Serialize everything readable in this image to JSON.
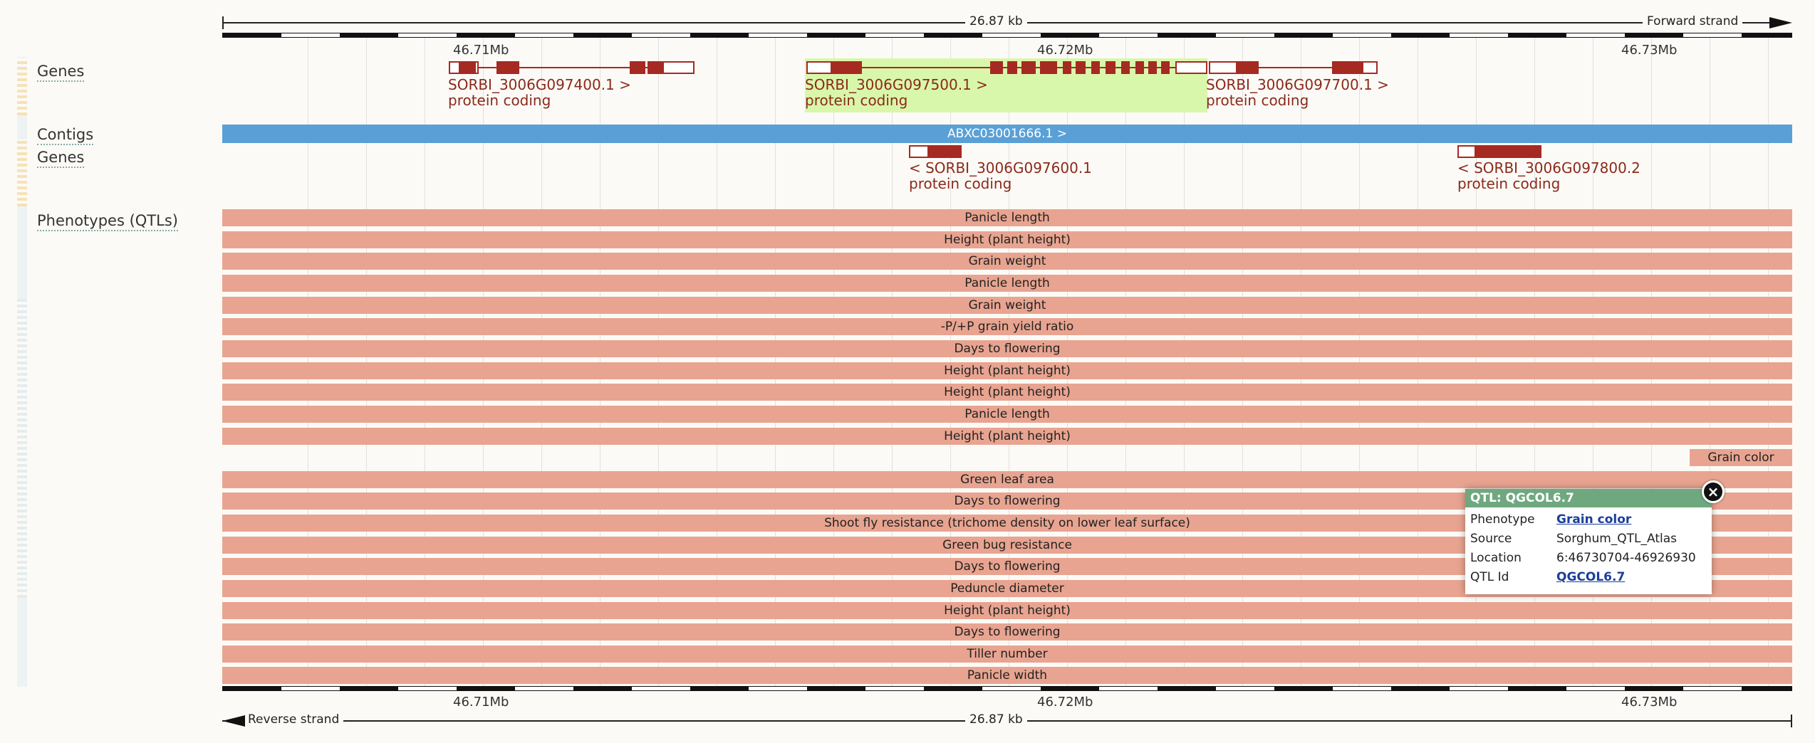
{
  "ruler": {
    "length_label": "26.87 kb",
    "forward_strand": "Forward strand",
    "reverse_strand": "Reverse strand",
    "mb_labels": [
      "46.71Mb",
      "46.72Mb",
      "46.73Mb"
    ]
  },
  "tracks": {
    "genes_top": "Genes",
    "contigs": "Contigs",
    "genes_bottom": "Genes",
    "phenotypes": "Phenotypes (QTLs)"
  },
  "genes_forward": [
    {
      "name": "SORBI_3006G097400.1 >",
      "biotype": "protein coding"
    },
    {
      "name": "SORBI_3006G097500.1 >",
      "biotype": "protein coding"
    },
    {
      "name": "SORBI_3006G097700.1 >",
      "biotype": "protein coding"
    }
  ],
  "contig_label": "ABXC03001666.1 >",
  "genes_reverse": [
    {
      "name": "< SORBI_3006G097600.1",
      "biotype": "protein coding"
    },
    {
      "name": "< SORBI_3006G097800.2",
      "biotype": "protein coding"
    }
  ],
  "qtls": [
    "Panicle length",
    "Height (plant height)",
    "Grain weight",
    "Panicle length",
    "Grain weight",
    "-P/+P grain yield ratio",
    "Days to flowering",
    "Height (plant height)",
    "Height (plant height)",
    "Panicle length",
    "Height (plant height)",
    "Grain color",
    "Green leaf area",
    "Days to flowering",
    "Shoot fly resistance (trichome density on lower leaf surface)",
    "Green bug resistance",
    "Days to flowering",
    "Peduncle diameter",
    "Height (plant height)",
    "Days to flowering",
    "Tiller number",
    "Panicle width"
  ],
  "popup": {
    "title": "QTL: QGCOL6.7",
    "close_symbol": "×",
    "rows": [
      {
        "key": "Phenotype",
        "value": "Grain color"
      },
      {
        "key": "Source",
        "value": "Sorghum_QTL_Atlas"
      },
      {
        "key": "Location",
        "value": "6:46730704-46926930"
      },
      {
        "key": "QTL Id",
        "value": "QGCOL6.7"
      }
    ]
  },
  "colors": {
    "gene": "#a52a22",
    "contig": "#5aa0d6",
    "qtl": "#e8a490",
    "highlight": "#d9f7aa",
    "popup_header": "#6fa87e"
  }
}
